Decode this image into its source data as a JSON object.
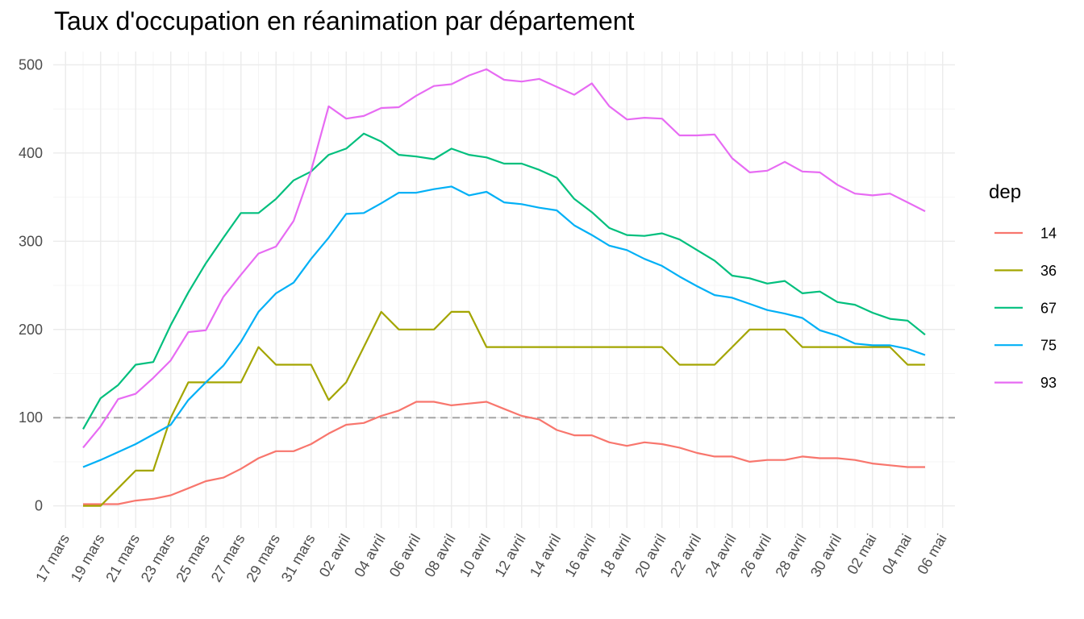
{
  "chart_data": {
    "type": "line",
    "title": "Taux d'occupation en réanimation par département",
    "xlabel": "",
    "ylabel": "",
    "ylim": [
      -25,
      515
    ],
    "yticks": [
      0,
      100,
      200,
      300,
      400,
      500
    ],
    "x_ticks": [
      "17 mars",
      "19 mars",
      "21 mars",
      "23 mars",
      "25 mars",
      "27 mars",
      "29 mars",
      "31 mars",
      "02 avril",
      "04 avril",
      "06 avril",
      "08 avril",
      "10 avril",
      "12 avril",
      "14 avril",
      "16 avril",
      "18 avril",
      "20 avril",
      "22 avril",
      "24 avril",
      "26 avril",
      "28 avril",
      "30 avril",
      "02 mai",
      "04 mai",
      "06 mai"
    ],
    "x": [
      "2020-03-18",
      "2020-03-19",
      "2020-03-20",
      "2020-03-21",
      "2020-03-22",
      "2020-03-23",
      "2020-03-24",
      "2020-03-25",
      "2020-03-26",
      "2020-03-27",
      "2020-03-28",
      "2020-03-29",
      "2020-03-30",
      "2020-03-31",
      "2020-04-01",
      "2020-04-02",
      "2020-04-03",
      "2020-04-04",
      "2020-04-05",
      "2020-04-06",
      "2020-04-07",
      "2020-04-08",
      "2020-04-09",
      "2020-04-10",
      "2020-04-11",
      "2020-04-12",
      "2020-04-13",
      "2020-04-14",
      "2020-04-15",
      "2020-04-16",
      "2020-04-17",
      "2020-04-18",
      "2020-04-19",
      "2020-04-20",
      "2020-04-21",
      "2020-04-22",
      "2020-04-23",
      "2020-04-24",
      "2020-04-25",
      "2020-04-26",
      "2020-04-27",
      "2020-04-28",
      "2020-04-29",
      "2020-04-30",
      "2020-05-01",
      "2020-05-02",
      "2020-05-03",
      "2020-05-04",
      "2020-05-05"
    ],
    "hline": 100,
    "grid": true,
    "legend": {
      "title": "dep",
      "position": "right"
    },
    "series": [
      {
        "name": "14",
        "color": "#F8766D",
        "values": [
          2,
          2,
          2,
          6,
          8,
          12,
          20,
          28,
          32,
          42,
          54,
          62,
          62,
          70,
          82,
          92,
          94,
          102,
          108,
          118,
          118,
          114,
          116,
          118,
          110,
          102,
          98,
          86,
          80,
          80,
          72,
          68,
          72,
          70,
          66,
          60,
          56,
          56,
          50,
          52,
          52,
          56,
          54,
          54,
          52,
          48,
          46,
          44,
          44
        ]
      },
      {
        "name": "36",
        "color": "#A3A500",
        "values": [
          0,
          0,
          20,
          40,
          40,
          100,
          140,
          140,
          140,
          140,
          180,
          160,
          160,
          160,
          120,
          140,
          180,
          220,
          200,
          200,
          200,
          220,
          220,
          180,
          180,
          180,
          180,
          180,
          180,
          180,
          180,
          180,
          180,
          180,
          160,
          160,
          160,
          180,
          200,
          200,
          200,
          180,
          180,
          180,
          180,
          180,
          180,
          160,
          160
        ]
      },
      {
        "name": "67",
        "color": "#00BF7D",
        "values": [
          87,
          122,
          137,
          160,
          163,
          205,
          242,
          275,
          304,
          332,
          332,
          348,
          369,
          379,
          398,
          405,
          422,
          413,
          398,
          396,
          393,
          405,
          398,
          395,
          388,
          388,
          381,
          372,
          348,
          333,
          315,
          307,
          306,
          309,
          302,
          290,
          278,
          261,
          258,
          252,
          255,
          241,
          243,
          231,
          228,
          219,
          212,
          210,
          194
        ]
      },
      {
        "name": "75",
        "color": "#00B0F6",
        "values": [
          44,
          52,
          61,
          70,
          81,
          92,
          120,
          140,
          159,
          186,
          220,
          241,
          253,
          280,
          304,
          331,
          332,
          343,
          355,
          355,
          359,
          362,
          352,
          356,
          344,
          342,
          338,
          335,
          318,
          307,
          295,
          290,
          280,
          272,
          260,
          249,
          239,
          236,
          229,
          222,
          218,
          213,
          199,
          193,
          184,
          182,
          182,
          178,
          171
        ]
      },
      {
        "name": "93",
        "color": "#E76BF3",
        "values": [
          66,
          90,
          121,
          127,
          145,
          165,
          197,
          199,
          237,
          262,
          286,
          294,
          323,
          380,
          453,
          439,
          442,
          451,
          452,
          465,
          476,
          478,
          488,
          495,
          483,
          481,
          484,
          475,
          466,
          479,
          453,
          438,
          440,
          439,
          420,
          420,
          421,
          394,
          378,
          380,
          390,
          379,
          378,
          364,
          354,
          352,
          354,
          344,
          334
        ]
      }
    ]
  }
}
